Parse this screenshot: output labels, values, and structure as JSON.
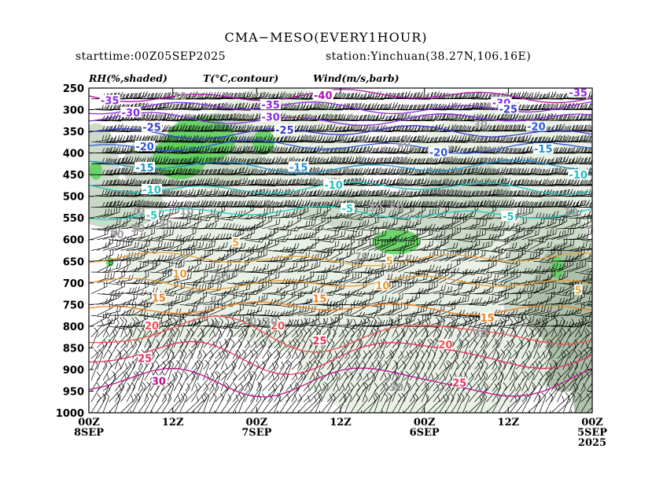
{
  "header": {
    "title": "CMA−MESO(EVERY1HOUR)",
    "starttime": "starttime:00Z05SEP2025",
    "station": "station:Yinchuan(38.27N,106.16E)",
    "field_rh": "RH(%,shaded)",
    "field_t": "T(°C,contour)",
    "field_wind": "Wind(m/s,barb)"
  },
  "chart_data": {
    "type": "time-pressure cross section",
    "y_axis": {
      "ticks": [
        "250",
        "300",
        "350",
        "400",
        "450",
        "500",
        "550",
        "600",
        "650",
        "700",
        "750",
        "800",
        "850",
        "900",
        "950",
        "1000"
      ],
      "values": [
        250,
        300,
        350,
        400,
        450,
        500,
        550,
        600,
        650,
        700,
        750,
        800,
        850,
        900,
        950,
        1000
      ],
      "ylim": [
        1000,
        250
      ],
      "inverted": true
    },
    "x_axis": {
      "ticks": [
        {
          "l1": "00Z",
          "l2": "8SEP",
          "l3": ""
        },
        {
          "l1": "12Z",
          "l2": "",
          "l3": ""
        },
        {
          "l1": "00Z",
          "l2": "7SEP",
          "l3": ""
        },
        {
          "l1": "12Z",
          "l2": "",
          "l3": ""
        },
        {
          "l1": "00Z",
          "l2": "6SEP",
          "l3": ""
        },
        {
          "l1": "12Z",
          "l2": "",
          "l3": ""
        },
        {
          "l1": "00Z",
          "l2": "5SEP",
          "l3": "2025"
        }
      ],
      "hours_before_start": [
        72,
        60,
        48,
        36,
        24,
        12,
        0
      ],
      "direction": "time decreases left to right"
    },
    "temperature_contours": [
      {
        "label": "-40",
        "color": "#b012b0",
        "level": 268
      },
      {
        "label": "-35",
        "color": "#8a2be2",
        "level": 295
      },
      {
        "label": "-30",
        "color": "#8a2be2",
        "level": 322
      },
      {
        "label": "-25",
        "color": "#3a3acc",
        "level": 352
      },
      {
        "label": "-20",
        "color": "#2e5ad8",
        "level": 385
      },
      {
        "label": "-15",
        "color": "#1f8fd0",
        "level": 432
      },
      {
        "label": "-10",
        "color": "#22c0c0",
        "level": 480
      },
      {
        "label": "-5",
        "color": "#20c8c0",
        "level": 538
      },
      {
        "label": "5",
        "color": "#e6a23c",
        "level": 645
      },
      {
        "label": "10",
        "color": "#e89a30",
        "level": 700
      },
      {
        "label": "15",
        "color": "#f08020",
        "level": 758
      },
      {
        "label": "20",
        "color": "#f05050",
        "level": 818
      },
      {
        "label": "25",
        "color": "#e83060",
        "level": 868
      },
      {
        "label": "30",
        "color": "#c0108c",
        "level": 928
      }
    ],
    "contour_labels": [
      {
        "t": "-40",
        "h": 38.5,
        "p": 268,
        "c": "#b012b0"
      },
      {
        "t": "-35",
        "h": 69,
        "p": 280,
        "c": "#8a2be2"
      },
      {
        "t": "-35",
        "h": 46,
        "p": 290,
        "c": "#8a2be2"
      },
      {
        "t": "-35",
        "h": 2,
        "p": 262,
        "c": "#8a2be2"
      },
      {
        "t": "-30",
        "h": 66,
        "p": 308,
        "c": "#8a2be2"
      },
      {
        "t": "-30",
        "h": 46,
        "p": 318,
        "c": "#8a2be2"
      },
      {
        "t": "-30",
        "h": 13,
        "p": 285,
        "c": "#8a2be2"
      },
      {
        "t": "-25",
        "h": 63,
        "p": 342,
        "c": "#3a3acc"
      },
      {
        "t": "-25",
        "h": 44,
        "p": 348,
        "c": "#3a3acc"
      },
      {
        "t": "-25",
        "h": 12,
        "p": 300,
        "c": "#3a3acc"
      },
      {
        "t": "-20",
        "h": 64,
        "p": 386,
        "c": "#2e5ad8"
      },
      {
        "t": "-20",
        "h": 22,
        "p": 400,
        "c": "#2e5ad8"
      },
      {
        "t": "-20",
        "h": 8,
        "p": 340,
        "c": "#2e5ad8"
      },
      {
        "t": "-15",
        "h": 64,
        "p": 435,
        "c": "#1f8fd0"
      },
      {
        "t": "-15",
        "h": 42,
        "p": 434,
        "c": "#1f8fd0"
      },
      {
        "t": "-15",
        "h": 7,
        "p": 392,
        "c": "#1f8fd0"
      },
      {
        "t": "-10",
        "h": 63,
        "p": 486,
        "c": "#22c0c0"
      },
      {
        "t": "-10",
        "h": 37,
        "p": 475,
        "c": "#22c0c0"
      },
      {
        "t": "-10",
        "h": 2,
        "p": 452,
        "c": "#22c0c0"
      },
      {
        "t": "-5",
        "h": 63,
        "p": 545,
        "c": "#20c8c0"
      },
      {
        "t": "-5",
        "h": 35,
        "p": 530,
        "c": "#20c8c0"
      },
      {
        "t": "-5",
        "h": 12,
        "p": 548,
        "c": "#20c8c0"
      },
      {
        "t": "5",
        "h": 51,
        "p": 608,
        "c": "#e6a23c"
      },
      {
        "t": "5",
        "h": 29,
        "p": 650,
        "c": "#e6a23c"
      },
      {
        "t": "5",
        "h": 2,
        "p": 718,
        "c": "#e6a23c"
      },
      {
        "t": "10",
        "h": 59,
        "p": 680,
        "c": "#e89a30"
      },
      {
        "t": "10",
        "h": 30,
        "p": 708,
        "c": "#e89a30"
      },
      {
        "t": "15",
        "h": 62,
        "p": 736,
        "c": "#f08020"
      },
      {
        "t": "15",
        "h": 39,
        "p": 738,
        "c": "#f08020"
      },
      {
        "t": "15",
        "h": 15,
        "p": 782,
        "c": "#f08020"
      },
      {
        "t": "20",
        "h": 63,
        "p": 800,
        "c": "#f05050"
      },
      {
        "t": "20",
        "h": 45,
        "p": 800,
        "c": "#f05050"
      },
      {
        "t": "20",
        "h": 21,
        "p": 844,
        "c": "#f05050"
      },
      {
        "t": "25",
        "h": 64,
        "p": 876,
        "c": "#e83060"
      },
      {
        "t": "25",
        "h": 39,
        "p": 835,
        "c": "#e83060"
      },
      {
        "t": "25",
        "h": 19,
        "p": 932,
        "c": "#e83060"
      },
      {
        "t": "30",
        "h": 62,
        "p": 928,
        "c": "#c0108c"
      }
    ],
    "rh_contour_labels": [
      {
        "t": "30",
        "h": 59,
        "p": 270
      },
      {
        "t": "30",
        "h": 16,
        "p": 335
      },
      {
        "t": "10",
        "h": 27,
        "p": 378
      },
      {
        "t": "30",
        "h": 31,
        "p": 528
      },
      {
        "t": "50",
        "h": 28,
        "p": 528
      },
      {
        "t": "70",
        "h": 65,
        "p": 535
      },
      {
        "t": "50",
        "h": 65,
        "p": 575
      },
      {
        "t": "30",
        "h": 68,
        "p": 590
      },
      {
        "t": "30",
        "h": 61,
        "p": 566
      },
      {
        "t": "70",
        "h": 33,
        "p": 640
      },
      {
        "t": "50",
        "h": 53,
        "p": 688
      },
      {
        "t": "70",
        "h": 49,
        "p": 790
      },
      {
        "t": "30",
        "h": 46,
        "p": 790
      },
      {
        "t": "30",
        "h": 16,
        "p": 818
      },
      {
        "t": "10",
        "h": 58,
        "p": 535
      },
      {
        "t": "10",
        "h": 3,
        "p": 538
      },
      {
        "t": "30",
        "h": 28,
        "p": 942
      }
    ],
    "rh_shading_levels": [
      30,
      50,
      70,
      90
    ],
    "rh_colors": {
      "30": "#e8f1e4",
      "50": "#c8d8c4",
      "70": "#a8bba4",
      "90": "#5fd05f"
    },
    "grid": false,
    "legend": "none"
  }
}
